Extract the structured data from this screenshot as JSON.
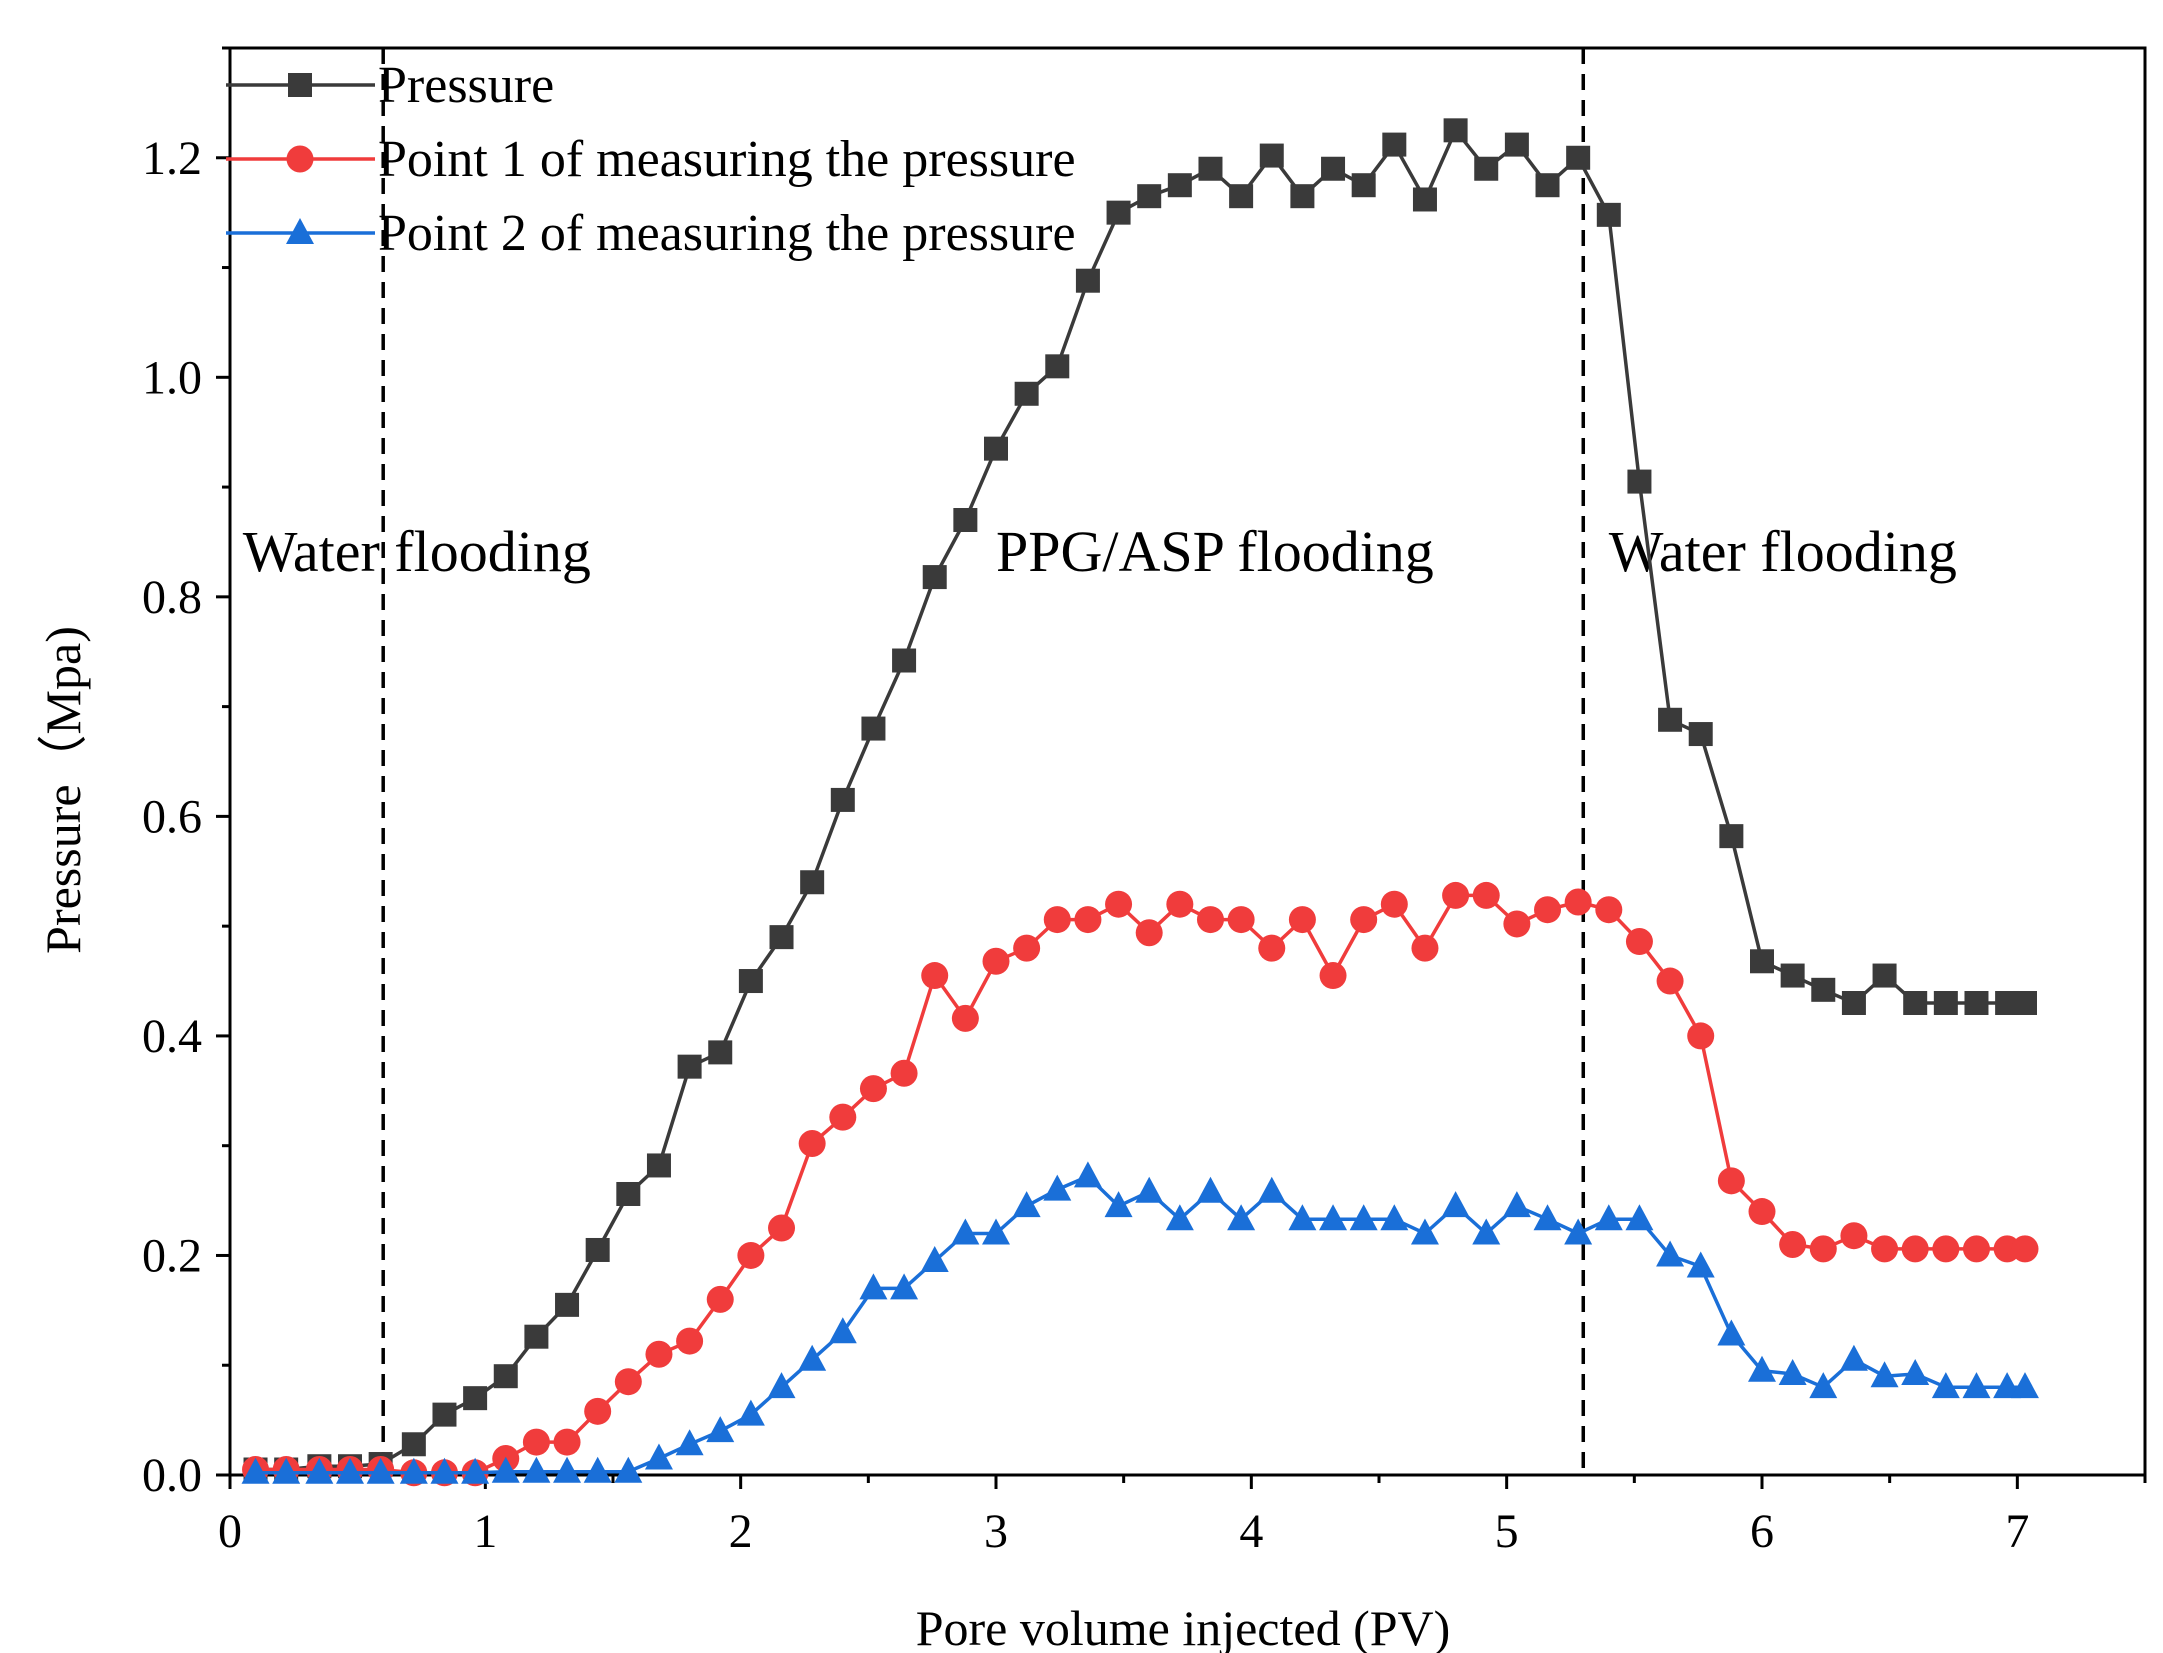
{
  "chart_data": {
    "type": "line",
    "title": "",
    "xlabel": "Pore volume injected (PV)",
    "ylabel": "Pressure（Mpa)",
    "xlim": [
      0,
      7.5
    ],
    "ylim": [
      0,
      1.3
    ],
    "x_ticks": [
      "0",
      "1",
      "2",
      "3",
      "4",
      "5",
      "6",
      "7"
    ],
    "y_ticks": [
      "0.0",
      "0.2",
      "0.4",
      "0.6",
      "0.8",
      "1.0",
      "1.2"
    ],
    "grid": false,
    "legend_position": "top-left",
    "vlines": [
      0.6,
      5.3
    ],
    "annotations": [
      {
        "text": "Water flooding",
        "x": 0.05,
        "y": 0.84
      },
      {
        "text": "PPG/ASP flooding",
        "x": 3.0,
        "y": 0.84
      },
      {
        "text": "Water flooding",
        "x": 5.4,
        "y": 0.84
      }
    ],
    "x": [
      0.1,
      0.22,
      0.35,
      0.47,
      0.59,
      0.72,
      0.84,
      0.96,
      1.08,
      1.2,
      1.32,
      1.44,
      1.56,
      1.68,
      1.8,
      1.92,
      2.04,
      2.16,
      2.28,
      2.4,
      2.52,
      2.64,
      2.76,
      2.88,
      3.0,
      3.12,
      3.24,
      3.36,
      3.48,
      3.6,
      3.72,
      3.84,
      3.96,
      4.08,
      4.2,
      4.32,
      4.44,
      4.56,
      4.68,
      4.8,
      4.92,
      5.04,
      5.16,
      5.28,
      5.4,
      5.52,
      5.64,
      5.76,
      5.88,
      6.0,
      6.12,
      6.24,
      6.36,
      6.48,
      6.6,
      6.72,
      6.84,
      6.96,
      7.03
    ],
    "series": [
      {
        "name": "Pressure",
        "color": "#3a3a3a",
        "marker": "square",
        "values": [
          0.005,
          0.005,
          0.008,
          0.008,
          0.01,
          0.028,
          0.055,
          0.07,
          0.09,
          0.126,
          0.155,
          0.205,
          0.256,
          0.282,
          0.372,
          0.385,
          0.45,
          0.49,
          0.54,
          0.615,
          0.68,
          0.742,
          0.818,
          0.87,
          0.935,
          0.985,
          1.01,
          1.088,
          1.15,
          1.165,
          1.175,
          1.19,
          1.165,
          1.202,
          1.165,
          1.19,
          1.175,
          1.212,
          1.162,
          1.225,
          1.19,
          1.212,
          1.175,
          1.2,
          1.148,
          0.905,
          0.688,
          0.675,
          0.582,
          0.468,
          0.455,
          0.442,
          0.43,
          0.455,
          0.43,
          0.43,
          0.43,
          0.43,
          0.43
        ]
      },
      {
        "name": "Point 1 of measuring the pressure",
        "color": "#f03c3c",
        "marker": "circle",
        "values": [
          0.005,
          0.005,
          0.005,
          0.005,
          0.005,
          0.002,
          0.002,
          0.002,
          0.015,
          0.03,
          0.03,
          0.058,
          0.085,
          0.11,
          0.122,
          0.16,
          0.2,
          0.225,
          0.302,
          0.326,
          0.352,
          0.366,
          0.455,
          0.416,
          0.468,
          0.48,
          0.506,
          0.506,
          0.52,
          0.494,
          0.52,
          0.506,
          0.506,
          0.48,
          0.506,
          0.455,
          0.506,
          0.52,
          0.48,
          0.528,
          0.528,
          0.502,
          0.515,
          0.522,
          0.515,
          0.486,
          0.45,
          0.4,
          0.268,
          0.24,
          0.21,
          0.206,
          0.218,
          0.206,
          0.206,
          0.206,
          0.206,
          0.206,
          0.206
        ]
      },
      {
        "name": "Point 2 of measuring the pressure",
        "color": "#1a6fd8",
        "marker": "triangle",
        "values": [
          0.002,
          0.002,
          0.002,
          0.002,
          0.002,
          0.002,
          0.002,
          0.002,
          0.003,
          0.003,
          0.003,
          0.003,
          0.003,
          0.015,
          0.028,
          0.04,
          0.055,
          0.08,
          0.105,
          0.13,
          0.17,
          0.17,
          0.195,
          0.22,
          0.22,
          0.245,
          0.26,
          0.272,
          0.245,
          0.258,
          0.233,
          0.258,
          0.233,
          0.258,
          0.233,
          0.233,
          0.233,
          0.233,
          0.22,
          0.245,
          0.22,
          0.245,
          0.233,
          0.22,
          0.233,
          0.233,
          0.2,
          0.19,
          0.128,
          0.095,
          0.092,
          0.08,
          0.105,
          0.09,
          0.092,
          0.08,
          0.08,
          0.08,
          0.08
        ]
      }
    ]
  }
}
